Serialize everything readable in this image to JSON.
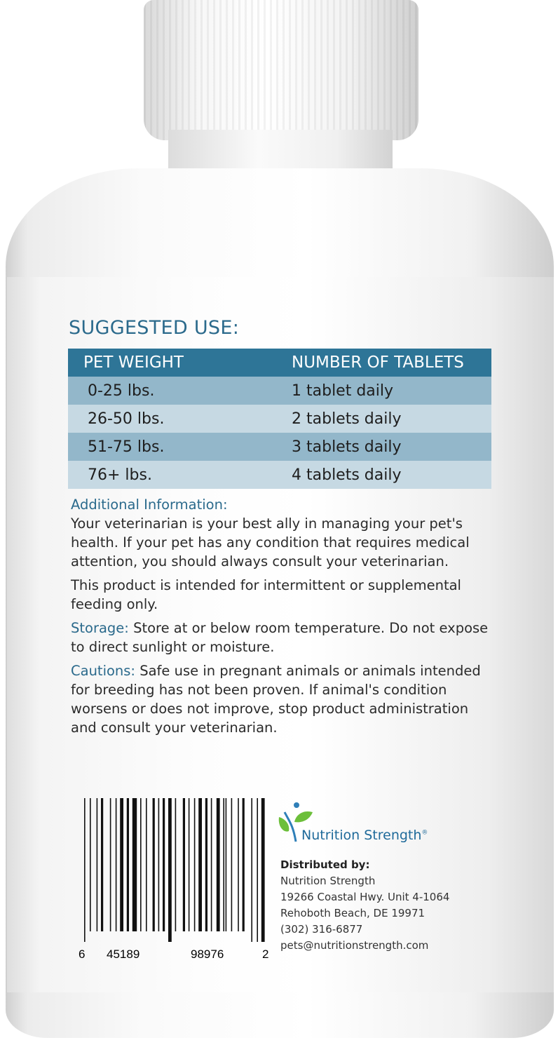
{
  "suggested_use": {
    "title": "SUGGESTED USE:",
    "headers": [
      "PET WEIGHT",
      "NUMBER OF TABLETS"
    ],
    "rows": [
      [
        "0-25 lbs.",
        "1 tablet daily"
      ],
      [
        "26-50 lbs.",
        "2 tablets daily"
      ],
      [
        "51-75 lbs.",
        "3 tablets daily"
      ],
      [
        "76+ lbs.",
        "4 tablets daily"
      ]
    ],
    "colors": {
      "header": "#2e7597",
      "row_dark": "#93b7ca",
      "row_light": "#c6d9e3"
    }
  },
  "additional": {
    "heading": "Additional Information:",
    "p1": "Your veterinarian is your best ally in managing your pet's health. If your pet has any condition that requires medical attention, you should always consult your veterinarian.",
    "p2": "This product is intended for intermittent or supplemental feeding only."
  },
  "storage": {
    "heading": "Storage:",
    "text": " Store at or below room temperature. Do not expose to direct sunlight or moisture."
  },
  "cautions": {
    "heading": "Cautions:",
    "text": " Safe use in pregnant animals or animals intended for breeding has not been proven. If animal's condition worsens or does not improve, stop product administration and consult your veterinarian."
  },
  "barcode": {
    "d1": "6",
    "d2": "45189",
    "d3": "98976",
    "d4": "2"
  },
  "brand": {
    "name": "Nutrition Strength",
    "reg": "®",
    "logo_icon": "leaf-person-logo"
  },
  "distributor": {
    "label": "Distributed by:",
    "lines": [
      "Nutrition Strength",
      "19266 Coastal Hwy. Unit 4-1064",
      "Rehoboth Beach, DE 19971",
      "(302) 316-6877",
      "pets@nutritionstrength.com"
    ]
  }
}
